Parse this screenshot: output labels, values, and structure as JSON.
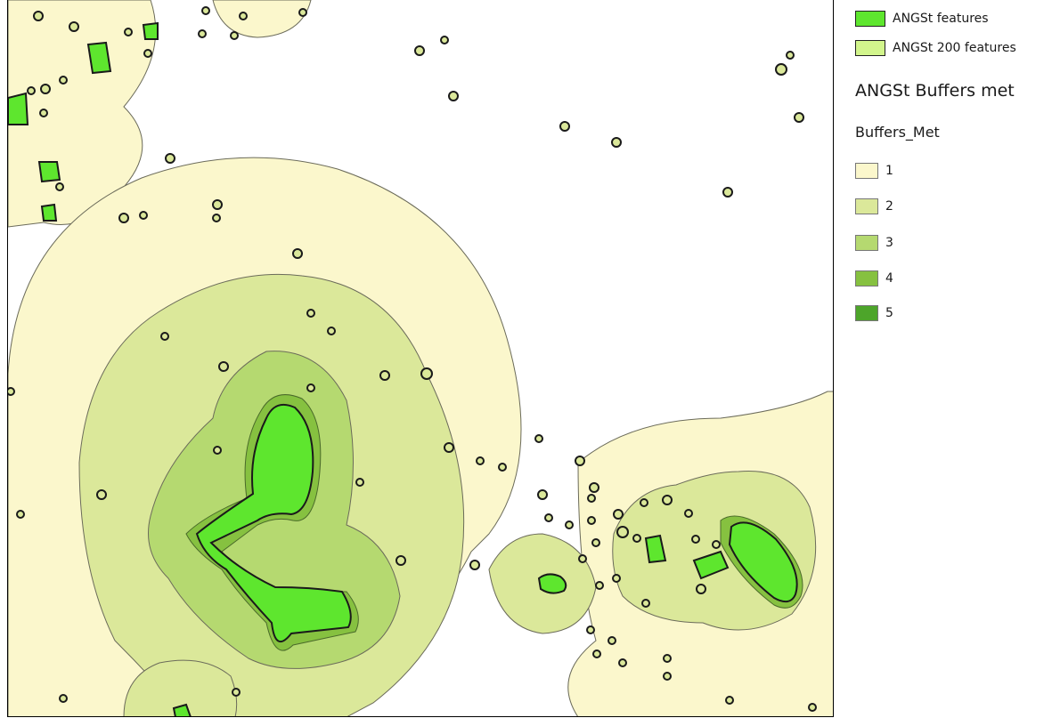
{
  "legend": {
    "features": [
      {
        "label": "ANGSt features",
        "fill": "#5ee62e"
      },
      {
        "label": "ANGSt 200 features",
        "fill": "#d2f58c"
      }
    ],
    "title": "ANGSt Buffers met",
    "field": "Buffers_Met",
    "classes": [
      {
        "label": "1",
        "color": "#fbf7cc"
      },
      {
        "label": "2",
        "color": "#dbe89a"
      },
      {
        "label": "3",
        "color": "#b5d970"
      },
      {
        "label": "4",
        "color": "#86c140"
      },
      {
        "label": "5",
        "color": "#4da52a"
      }
    ]
  }
}
